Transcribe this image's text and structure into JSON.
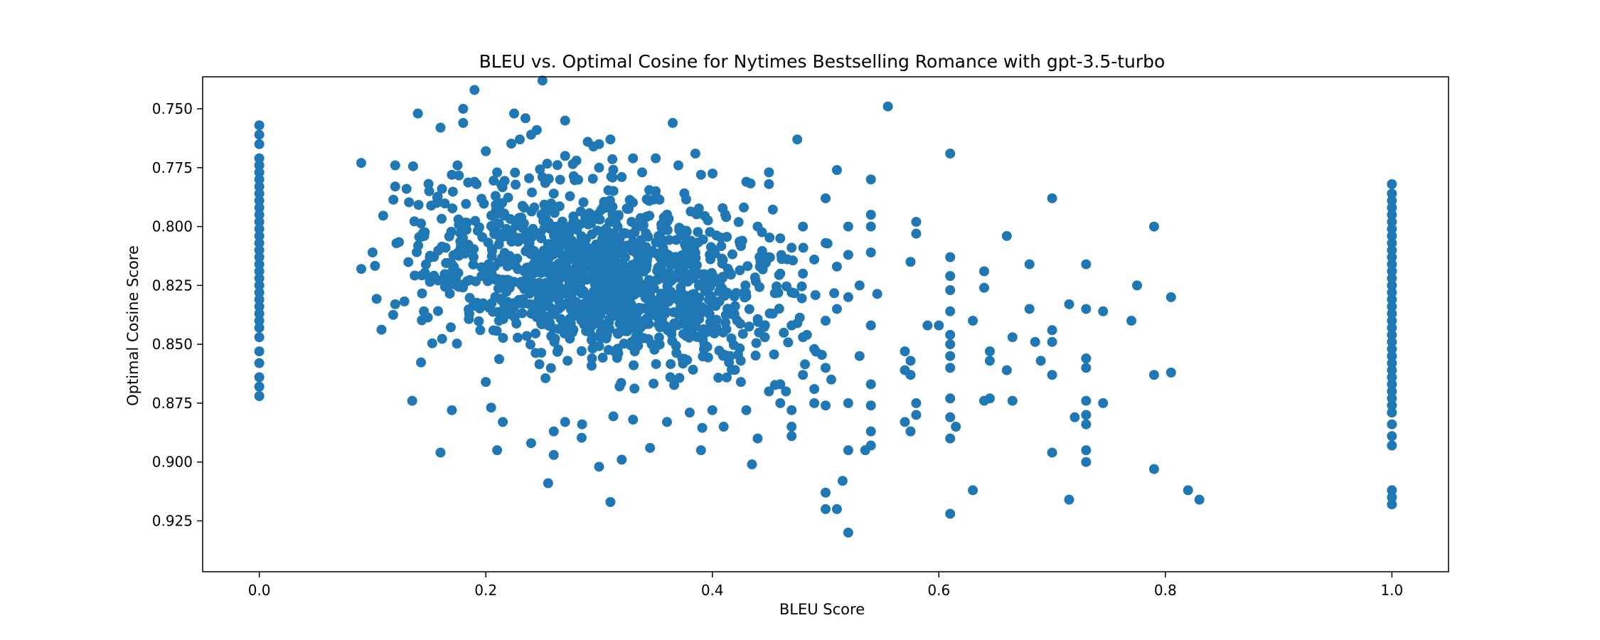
{
  "chart_data": {
    "type": "scatter",
    "title": "BLEU vs. Optimal Cosine for Nytimes Bestselling Romance with gpt-3.5-turbo",
    "xlabel": "BLEU Score",
    "ylabel": "Optimal Cosine Score",
    "xlim": [
      -0.05,
      1.05
    ],
    "ylim": [
      0.7364,
      0.9466
    ],
    "y_inverted": true,
    "grid": false,
    "legend": "none",
    "marker_color": "#1f77b4",
    "x_ticks": [
      {
        "value": 0.0,
        "label": "0.0"
      },
      {
        "value": 0.2,
        "label": "0.2"
      },
      {
        "value": 0.4,
        "label": "0.4"
      },
      {
        "value": 0.6,
        "label": "0.6"
      },
      {
        "value": 0.8,
        "label": "0.8"
      },
      {
        "value": 1.0,
        "label": "1.0"
      }
    ],
    "y_ticks": [
      {
        "value": 0.75,
        "label": "0.750"
      },
      {
        "value": 0.775,
        "label": "0.775"
      },
      {
        "value": 0.8,
        "label": "0.800"
      },
      {
        "value": 0.825,
        "label": "0.825"
      },
      {
        "value": 0.85,
        "label": "0.850"
      },
      {
        "value": 0.875,
        "label": "0.875"
      },
      {
        "value": 0.9,
        "label": "0.900"
      },
      {
        "value": 0.925,
        "label": "0.925"
      }
    ],
    "series": [
      {
        "points": [
          [
            0.0,
            0.757
          ],
          [
            0.0,
            0.761
          ],
          [
            0.0,
            0.765
          ],
          [
            0.0,
            0.771
          ],
          [
            0.0,
            0.774
          ],
          [
            0.0,
            0.777
          ],
          [
            0.0,
            0.78
          ],
          [
            0.0,
            0.783
          ],
          [
            0.0,
            0.786
          ],
          [
            0.0,
            0.789
          ],
          [
            0.0,
            0.792
          ],
          [
            0.0,
            0.795
          ],
          [
            0.0,
            0.798
          ],
          [
            0.0,
            0.801
          ],
          [
            0.0,
            0.804
          ],
          [
            0.0,
            0.807
          ],
          [
            0.0,
            0.81
          ],
          [
            0.0,
            0.813
          ],
          [
            0.0,
            0.816
          ],
          [
            0.0,
            0.819
          ],
          [
            0.0,
            0.822
          ],
          [
            0.0,
            0.825
          ],
          [
            0.0,
            0.828
          ],
          [
            0.0,
            0.831
          ],
          [
            0.0,
            0.834
          ],
          [
            0.0,
            0.837
          ],
          [
            0.0,
            0.84
          ],
          [
            0.0,
            0.843
          ],
          [
            0.0,
            0.847
          ],
          [
            0.0,
            0.853
          ],
          [
            0.0,
            0.858
          ],
          [
            0.0,
            0.864
          ],
          [
            0.0,
            0.868
          ],
          [
            0.0,
            0.872
          ],
          [
            1.0,
            0.782
          ],
          [
            1.0,
            0.786
          ],
          [
            1.0,
            0.789
          ],
          [
            1.0,
            0.792
          ],
          [
            1.0,
            0.795
          ],
          [
            1.0,
            0.798
          ],
          [
            1.0,
            0.801
          ],
          [
            1.0,
            0.804
          ],
          [
            1.0,
            0.807
          ],
          [
            1.0,
            0.81
          ],
          [
            1.0,
            0.813
          ],
          [
            1.0,
            0.816
          ],
          [
            1.0,
            0.819
          ],
          [
            1.0,
            0.822
          ],
          [
            1.0,
            0.825
          ],
          [
            1.0,
            0.828
          ],
          [
            1.0,
            0.831
          ],
          [
            1.0,
            0.834
          ],
          [
            1.0,
            0.837
          ],
          [
            1.0,
            0.84
          ],
          [
            1.0,
            0.843
          ],
          [
            1.0,
            0.846
          ],
          [
            1.0,
            0.849
          ],
          [
            1.0,
            0.852
          ],
          [
            1.0,
            0.855
          ],
          [
            1.0,
            0.858
          ],
          [
            1.0,
            0.861
          ],
          [
            1.0,
            0.864
          ],
          [
            1.0,
            0.867
          ],
          [
            1.0,
            0.87
          ],
          [
            1.0,
            0.873
          ],
          [
            1.0,
            0.876
          ],
          [
            1.0,
            0.879
          ],
          [
            1.0,
            0.884
          ],
          [
            1.0,
            0.889
          ],
          [
            1.0,
            0.893
          ],
          [
            1.0,
            0.912
          ],
          [
            1.0,
            0.915
          ],
          [
            1.0,
            0.918
          ],
          [
            0.25,
            0.738
          ],
          [
            0.19,
            0.742
          ],
          [
            0.555,
            0.749
          ],
          [
            0.18,
            0.75
          ],
          [
            0.14,
            0.752
          ],
          [
            0.225,
            0.752
          ],
          [
            0.235,
            0.754
          ],
          [
            0.27,
            0.755
          ],
          [
            0.365,
            0.756
          ],
          [
            0.18,
            0.756
          ],
          [
            0.16,
            0.758
          ],
          [
            0.245,
            0.759
          ],
          [
            0.24,
            0.761
          ],
          [
            0.31,
            0.763
          ],
          [
            0.23,
            0.763
          ],
          [
            0.475,
            0.763
          ],
          [
            0.29,
            0.764
          ],
          [
            0.3,
            0.765
          ],
          [
            0.295,
            0.766
          ],
          [
            0.2,
            0.768
          ],
          [
            0.385,
            0.769
          ],
          [
            0.61,
            0.769
          ],
          [
            0.27,
            0.77
          ],
          [
            0.33,
            0.771
          ],
          [
            0.35,
            0.771
          ],
          [
            0.28,
            0.772
          ],
          [
            0.09,
            0.773
          ],
          [
            0.12,
            0.774
          ],
          [
            0.175,
            0.774
          ],
          [
            0.37,
            0.774
          ],
          [
            0.3,
            0.775
          ],
          [
            0.51,
            0.776
          ],
          [
            0.21,
            0.777
          ],
          [
            0.45,
            0.777
          ],
          [
            0.17,
            0.778
          ],
          [
            0.39,
            0.778
          ],
          [
            0.32,
            0.779
          ],
          [
            0.25,
            0.779
          ],
          [
            0.54,
            0.78
          ],
          [
            0.19,
            0.781
          ],
          [
            0.43,
            0.781
          ],
          [
            0.45,
            0.782
          ],
          [
            0.12,
            0.783
          ],
          [
            0.13,
            0.784
          ],
          [
            0.15,
            0.785
          ],
          [
            0.35,
            0.785
          ],
          [
            0.26,
            0.786
          ],
          [
            0.5,
            0.788
          ],
          [
            0.7,
            0.788
          ],
          [
            0.54,
            0.795
          ],
          [
            0.58,
            0.798
          ],
          [
            0.54,
            0.8
          ],
          [
            0.79,
            0.8
          ],
          [
            0.52,
            0.8
          ],
          [
            0.58,
            0.803
          ],
          [
            0.66,
            0.804
          ],
          [
            0.1,
            0.811
          ],
          [
            0.54,
            0.811
          ],
          [
            0.575,
            0.815
          ],
          [
            0.61,
            0.813
          ],
          [
            0.68,
            0.816
          ],
          [
            0.73,
            0.816
          ],
          [
            0.09,
            0.818
          ],
          [
            0.64,
            0.819
          ],
          [
            0.61,
            0.821
          ],
          [
            0.64,
            0.826
          ],
          [
            0.775,
            0.825
          ],
          [
            0.61,
            0.827
          ],
          [
            0.12,
            0.833
          ],
          [
            0.805,
            0.83
          ],
          [
            0.715,
            0.833
          ],
          [
            0.73,
            0.835
          ],
          [
            0.745,
            0.836
          ],
          [
            0.68,
            0.835
          ],
          [
            0.61,
            0.836
          ],
          [
            0.77,
            0.84
          ],
          [
            0.63,
            0.84
          ],
          [
            0.59,
            0.842
          ],
          [
            0.6,
            0.842
          ],
          [
            0.54,
            0.842
          ],
          [
            0.7,
            0.844
          ],
          [
            0.61,
            0.846
          ],
          [
            0.665,
            0.847
          ],
          [
            0.685,
            0.849
          ],
          [
            0.7,
            0.849
          ],
          [
            0.61,
            0.85
          ],
          [
            0.57,
            0.853
          ],
          [
            0.645,
            0.853
          ],
          [
            0.61,
            0.855
          ],
          [
            0.73,
            0.856
          ],
          [
            0.645,
            0.857
          ],
          [
            0.69,
            0.857
          ],
          [
            0.53,
            0.855
          ],
          [
            0.575,
            0.857
          ],
          [
            0.61,
            0.86
          ],
          [
            0.73,
            0.86
          ],
          [
            0.57,
            0.861
          ],
          [
            0.66,
            0.861
          ],
          [
            0.7,
            0.863
          ],
          [
            0.575,
            0.863
          ],
          [
            0.79,
            0.863
          ],
          [
            0.805,
            0.862
          ],
          [
            0.54,
            0.867
          ],
          [
            0.61,
            0.873
          ],
          [
            0.645,
            0.873
          ],
          [
            0.64,
            0.874
          ],
          [
            0.665,
            0.874
          ],
          [
            0.58,
            0.875
          ],
          [
            0.73,
            0.874
          ],
          [
            0.745,
            0.875
          ],
          [
            0.54,
            0.876
          ],
          [
            0.58,
            0.88
          ],
          [
            0.61,
            0.881
          ],
          [
            0.72,
            0.881
          ],
          [
            0.73,
            0.88
          ],
          [
            0.73,
            0.884
          ],
          [
            0.57,
            0.883
          ],
          [
            0.615,
            0.885
          ],
          [
            0.54,
            0.887
          ],
          [
            0.575,
            0.887
          ],
          [
            0.61,
            0.89
          ],
          [
            0.54,
            0.893
          ],
          [
            0.52,
            0.895
          ],
          [
            0.535,
            0.895
          ],
          [
            0.7,
            0.896
          ],
          [
            0.73,
            0.895
          ],
          [
            0.73,
            0.9
          ],
          [
            0.79,
            0.903
          ],
          [
            0.16,
            0.896
          ],
          [
            0.21,
            0.895
          ],
          [
            0.26,
            0.897
          ],
          [
            0.3,
            0.902
          ],
          [
            0.32,
            0.899
          ],
          [
            0.345,
            0.894
          ],
          [
            0.39,
            0.895
          ],
          [
            0.435,
            0.901
          ],
          [
            0.255,
            0.909
          ],
          [
            0.31,
            0.917
          ],
          [
            0.5,
            0.913
          ],
          [
            0.515,
            0.908
          ],
          [
            0.5,
            0.92
          ],
          [
            0.51,
            0.92
          ],
          [
            0.52,
            0.93
          ],
          [
            0.61,
            0.922
          ],
          [
            0.63,
            0.912
          ],
          [
            0.715,
            0.916
          ],
          [
            0.82,
            0.912
          ],
          [
            0.83,
            0.916
          ],
          [
            0.135,
            0.874
          ],
          [
            0.17,
            0.878
          ],
          [
            0.2,
            0.866
          ],
          [
            0.215,
            0.883
          ],
          [
            0.24,
            0.892
          ],
          [
            0.26,
            0.887
          ],
          [
            0.27,
            0.883
          ],
          [
            0.285,
            0.884
          ],
          [
            0.33,
            0.882
          ],
          [
            0.36,
            0.883
          ],
          [
            0.38,
            0.879
          ],
          [
            0.4,
            0.878
          ],
          [
            0.41,
            0.885
          ],
          [
            0.43,
            0.878
          ],
          [
            0.44,
            0.89
          ],
          [
            0.47,
            0.885
          ],
          [
            0.47,
            0.889
          ],
          [
            0.49,
            0.875
          ],
          [
            0.5,
            0.876
          ],
          [
            0.52,
            0.875
          ],
          [
            0.48,
            0.863
          ],
          [
            0.49,
            0.869
          ],
          [
            0.5,
            0.86
          ],
          [
            0.505,
            0.865
          ],
          [
            0.46,
            0.867
          ],
          [
            0.465,
            0.87
          ],
          [
            0.46,
            0.875
          ],
          [
            0.45,
            0.87
          ],
          [
            0.47,
            0.878
          ],
          [
            0.49,
            0.852
          ],
          [
            0.48,
            0.847
          ],
          [
            0.47,
            0.842
          ],
          [
            0.5,
            0.84
          ],
          [
            0.51,
            0.835
          ],
          [
            0.52,
            0.83
          ],
          [
            0.53,
            0.825
          ],
          [
            0.51,
            0.817
          ],
          [
            0.52,
            0.812
          ],
          [
            0.5,
            0.807
          ],
          [
            0.49,
            0.814
          ],
          [
            0.48,
            0.82
          ],
          [
            0.47,
            0.828
          ],
          [
            0.46,
            0.82
          ],
          [
            0.45,
            0.813
          ],
          [
            0.47,
            0.809
          ],
          [
            0.44,
            0.8
          ],
          [
            0.46,
            0.805
          ],
          [
            0.48,
            0.8
          ]
        ]
      }
    ],
    "cluster_seed": {
      "center_x": 0.3,
      "center_y": 0.822,
      "count": 1300
    }
  }
}
